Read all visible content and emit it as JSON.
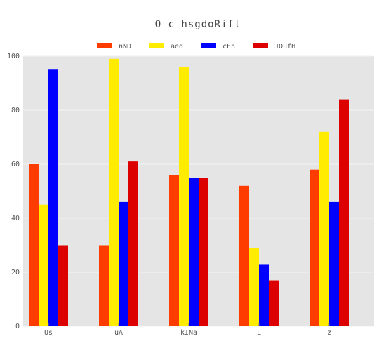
{
  "chart_data": {
    "type": "bar",
    "title": "O c  hsgdoRifl",
    "xlabel": "",
    "ylabel": "",
    "categories": [
      "Us",
      "uA",
      "kINa",
      "L",
      "z"
    ],
    "series": [
      {
        "name": "nND",
        "color": "#ff3c00",
        "values": [
          60,
          30,
          56,
          52,
          58
        ]
      },
      {
        "name": "aed",
        "color": "#ffec00",
        "values": [
          45,
          99,
          96,
          29,
          72
        ]
      },
      {
        "name": "cEn",
        "color": "#0000ff",
        "values": [
          95,
          46,
          55,
          23,
          46
        ]
      },
      {
        "name": "JOufH",
        "color": "#dd0000",
        "values": [
          30,
          61,
          55,
          17,
          84
        ]
      }
    ],
    "ylim": [
      0,
      100
    ],
    "yticks": [
      0,
      20,
      40,
      60,
      80,
      100
    ],
    "grid": true,
    "legend_position": "top-center",
    "plot_background": "#e5e5e5"
  }
}
